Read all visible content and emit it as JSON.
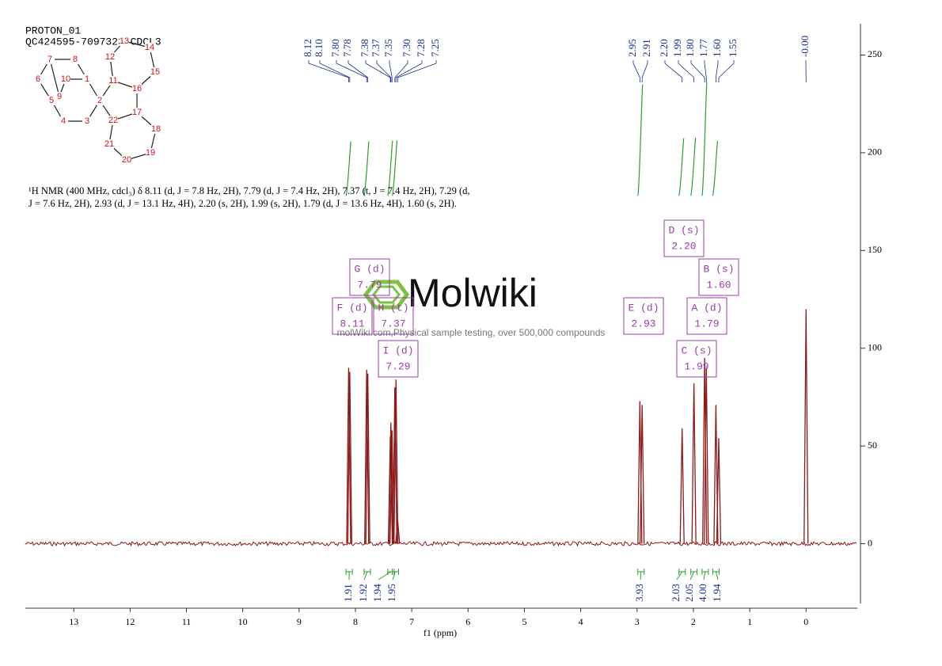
{
  "header": {
    "title": "PROTON_01",
    "sample": "QC424595-7097323-CDCL3"
  },
  "description": "¹H NMR (400 MHz, cdcl₃) δ 8.11 (d, J = 7.8 Hz, 2H), 7.79 (d, J = 7.4 Hz, 2H), 7.37 (t, J = 7.4 Hz, 2H), 7.29 (d, J = 7.6 Hz, 2H), 2.93 (d, J = 13.1 Hz, 4H), 2.20 (s, 2H), 1.99 (s, 2H), 1.79 (d, J = 13.6 Hz, 4H), 1.60 (s, 2H).",
  "watermark": {
    "brand": "Molwiki",
    "tagline": "molWiki.com,Physical sample testing, over 500,000 compounds"
  },
  "structure": {
    "atoms": [
      "7",
      "8",
      "6",
      "10",
      "1",
      "9",
      "5",
      "2",
      "11",
      "12",
      "13",
      "14",
      "15",
      "16",
      "17",
      "22",
      "4",
      "3",
      "18",
      "19",
      "20",
      "21"
    ]
  },
  "chart_data": {
    "type": "nmr",
    "xlabel": "f1 (ppm)",
    "xlim": [
      13.86,
      -0.91
    ],
    "ylim": [
      -33,
      266
    ],
    "xticks": [
      13,
      12,
      11,
      10,
      9,
      8,
      7,
      6,
      5,
      4,
      3,
      2,
      1,
      0
    ],
    "yticks": [
      0,
      50,
      100,
      150,
      200,
      250
    ],
    "color": "#8b1a1a",
    "label_color": "#1a2a8c",
    "integral_color": "#2e9e2e",
    "box_color": "#9b3bab",
    "peaks": {
      "x": [
        {
          "value": 8.12,
          "label": "8.12"
        },
        {
          "value": 8.1,
          "label": "8.10"
        },
        {
          "value": 7.8,
          "label": "7.80"
        },
        {
          "value": 7.78,
          "label": "7.78"
        },
        {
          "value": 7.38,
          "label": "7.38"
        },
        {
          "value": 7.37,
          "label": "7.37"
        },
        {
          "value": 7.35,
          "label": "7.35"
        },
        {
          "value": 7.3,
          "label": "7.30"
        },
        {
          "value": 7.28,
          "label": "7.28"
        },
        {
          "value": 7.25,
          "label": "7.25"
        },
        {
          "value": 2.95,
          "label": "2.95"
        },
        {
          "value": 2.91,
          "label": "2.91"
        },
        {
          "value": 2.2,
          "label": "2.20"
        },
        {
          "value": 1.99,
          "label": "1.99"
        },
        {
          "value": 1.8,
          "label": "1.80"
        },
        {
          "value": 1.77,
          "label": "1.77"
        },
        {
          "value": 1.6,
          "label": "1.60"
        },
        {
          "value": 1.55,
          "label": "1.55"
        },
        {
          "value": 0,
          "label": "-0.00"
        }
      ],
      "values": [
        90,
        88,
        89,
        87,
        55,
        62,
        58,
        80,
        84,
        12,
        73,
        71,
        59,
        82,
        95,
        90,
        71,
        54,
        120
      ]
    },
    "integrals": {
      "x": [
        8.11,
        7.79,
        7.37,
        7.29,
        2.93,
        2.2,
        1.99,
        1.79,
        1.6
      ],
      "values": [
        1.91,
        1.92,
        1.94,
        1.95,
        3.93,
        2.03,
        2.05,
        4.0,
        1.94
      ],
      "value_labels": [
        "1.91",
        "1.92",
        "1.94",
        "1.95",
        "3.93",
        "2.03",
        "2.05",
        "4.00",
        "1.94"
      ]
    },
    "multiplets": [
      {
        "label": "F (d)",
        "shift": "8.11"
      },
      {
        "label": "G (d)",
        "shift": "7.79"
      },
      {
        "label": "H (t)",
        "shift": "7.37"
      },
      {
        "label": "I (d)",
        "shift": "7.29"
      },
      {
        "label": "E (d)",
        "shift": "2.93"
      },
      {
        "label": "D (s)",
        "shift": "2.20"
      },
      {
        "label": "A (d)",
        "shift": "1.79"
      },
      {
        "label": "B (s)",
        "shift": "1.60"
      },
      {
        "label": "C (s)",
        "shift": "1.99"
      }
    ]
  }
}
